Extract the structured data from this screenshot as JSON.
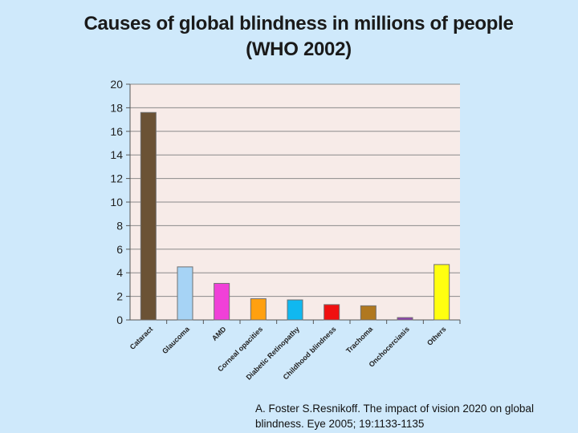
{
  "title": {
    "line1": "Causes of global blindness in millions of people",
    "line2": "(WHO 2002)"
  },
  "citation": "A. Foster S.Resnikoff. The impact of vision 2020 on global blindness. Eye 2005; 19:1133-1135",
  "chart_data": {
    "type": "bar",
    "categories": [
      "Cataract",
      "Glaucoma",
      "AMD",
      "Corneal opacities",
      "Diabetic Retinopathy",
      "Childhood blindness",
      "Trachoma",
      "Onchocerciasis",
      "Others"
    ],
    "values": [
      17.6,
      4.5,
      3.1,
      1.8,
      1.7,
      1.3,
      1.2,
      0.2,
      4.7
    ],
    "colors": [
      "#6b5235",
      "#a6d3f5",
      "#f040d8",
      "#ffa010",
      "#10b8f0",
      "#f01010",
      "#b07820",
      "#9040b0",
      "#ffff10"
    ],
    "ylim": [
      0,
      20
    ],
    "yticks": [
      0,
      2,
      4,
      6,
      8,
      10,
      12,
      14,
      16,
      18,
      20
    ],
    "grid": true,
    "plot_background": "#f7ebe8",
    "bar_edge": "#707070"
  }
}
